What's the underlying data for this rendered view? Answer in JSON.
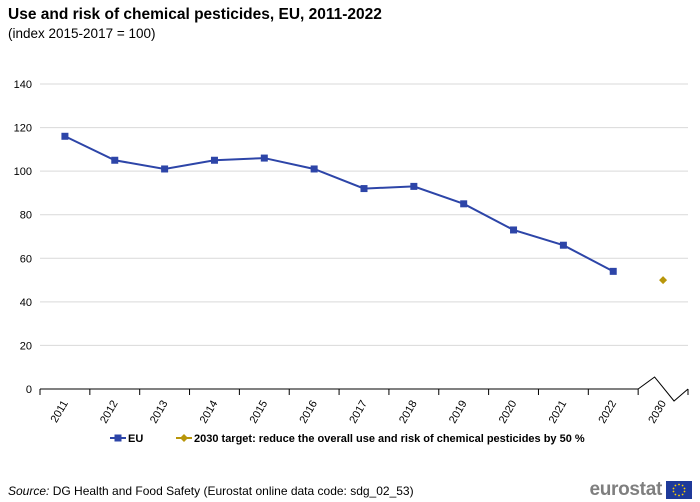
{
  "title": "Use and risk of chemical pesticides, EU, 2011-2022",
  "subtitle": "(index 2015-2017 = 100)",
  "source": {
    "label": "Source:",
    "text": "DG Health and Food Safety (Eurostat online data code: sdg_02_53)"
  },
  "logo": {
    "text": "eurostat",
    "icon": "eu-flag-icon"
  },
  "colors": {
    "eu": "#2d45a8",
    "target": "#b8960a",
    "grid": "#d9d9d9",
    "axis": "#000000"
  },
  "chart_data": {
    "type": "line",
    "title": "Use and risk of chemical pesticides, EU, 2011-2022",
    "subtitle": "(index 2015-2017 = 100)",
    "xlabel": "",
    "ylabel": "",
    "ylim": [
      0,
      140
    ],
    "yticks": [
      0,
      20,
      40,
      60,
      80,
      100,
      120,
      140
    ],
    "grid": true,
    "categories": [
      "2011",
      "2012",
      "2013",
      "2014",
      "2015",
      "2016",
      "2017",
      "2018",
      "2019",
      "2020",
      "2021",
      "2022",
      "2030"
    ],
    "axis_break_between": [
      "2022",
      "2030"
    ],
    "legend_position": "bottom",
    "series": [
      {
        "name": "EU",
        "marker": "square",
        "values": [
          116,
          105,
          101,
          105,
          106,
          101,
          92,
          93,
          85,
          73,
          66,
          54,
          null
        ]
      },
      {
        "name": "2030 target: reduce the overall use and risk of chemical pesticides by 50 %",
        "marker": "diamond",
        "values": [
          null,
          null,
          null,
          null,
          null,
          null,
          null,
          null,
          null,
          null,
          null,
          null,
          50
        ]
      }
    ]
  }
}
